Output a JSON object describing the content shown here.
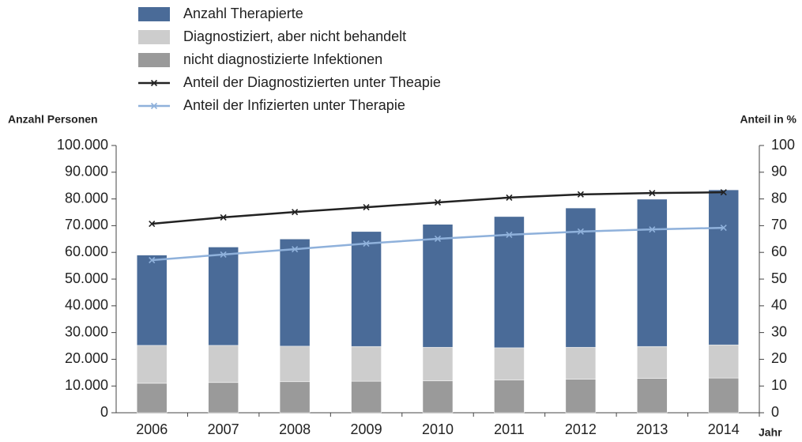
{
  "chart_data": {
    "type": "combo",
    "y_label": "Anzahl Personen",
    "y2_label": "Anteil in %",
    "x_label": "Jahr",
    "categories": [
      "2006",
      "2007",
      "2008",
      "2009",
      "2010",
      "2011",
      "2012",
      "2013",
      "2014"
    ],
    "series": [
      {
        "name": "Anzahl Therapierte",
        "type": "bar",
        "color": "#4a6b98",
        "values": [
          33800,
          36800,
          40100,
          43000,
          46000,
          49100,
          52100,
          55100,
          58000
        ]
      },
      {
        "name": "Diagnostiziert, aber nicht behandelt",
        "type": "bar",
        "color": "#cdcdcd",
        "values": [
          14200,
          13900,
          13300,
          13000,
          12600,
          12100,
          12000,
          12000,
          12400
        ]
      },
      {
        "name": "nicht diagnostizierte Infektionen",
        "type": "bar",
        "color": "#9a9a9a",
        "values": [
          11000,
          11300,
          11600,
          11800,
          11900,
          12200,
          12500,
          12800,
          13000
        ]
      },
      {
        "name": "Anteil der Diagnostizierten unter Theapie",
        "type": "line",
        "axis": "y2",
        "color": "#222222",
        "values": [
          70.7,
          73.1,
          75.1,
          76.9,
          78.7,
          80.5,
          81.7,
          82.2,
          82.5
        ]
      },
      {
        "name": "Anteil der Infizierten unter Therapie",
        "type": "line",
        "axis": "y2",
        "color": "#8fb1db",
        "values": [
          57.1,
          59.2,
          61.2,
          63.3,
          65.1,
          66.6,
          67.8,
          68.6,
          69.2
        ]
      }
    ],
    "ylim": [
      0,
      100000
    ],
    "yticks": [
      0,
      {
        "value": 10000,
        "label": "10.000"
      },
      {
        "value": 20000,
        "label": "20.000"
      },
      {
        "value": 30000,
        "label": "30.000"
      },
      {
        "value": 40000,
        "label": "40.000"
      },
      {
        "value": 50000,
        "label": "50.000"
      },
      {
        "value": 60000,
        "label": "60.000"
      },
      {
        "value": 70000,
        "label": "70.000"
      },
      {
        "value": 80000,
        "label": "80.000"
      },
      {
        "value": 90000,
        "label": "90.000"
      },
      {
        "value": 100000,
        "label": "100.000"
      }
    ],
    "y2lim": [
      0,
      100
    ],
    "y2ticks": [
      0,
      10,
      20,
      30,
      40,
      50,
      60,
      70,
      80,
      90,
      100
    ]
  }
}
